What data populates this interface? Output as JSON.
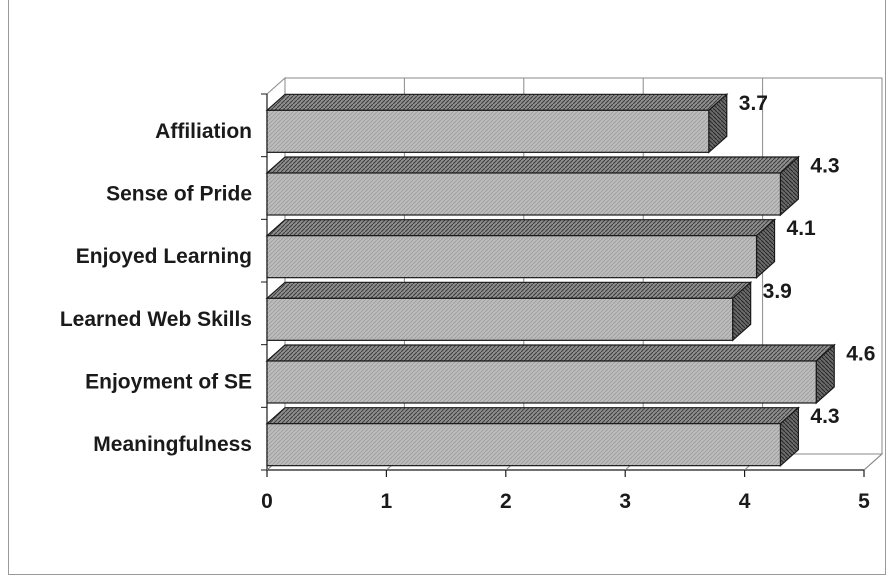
{
  "chart_data": {
    "type": "bar",
    "orientation": "horizontal",
    "style": "3d",
    "categories": [
      "Affiliation",
      "Sense of Pride",
      "Enjoyed Learning",
      "Learned Web Skills",
      "Enjoyment of SE",
      "Meaningfulness"
    ],
    "values": [
      3.7,
      4.3,
      4.1,
      3.9,
      4.6,
      4.3
    ],
    "data_labels": [
      "3.7",
      "4.3",
      "4.1",
      "3.9",
      "4.6",
      "4.3"
    ],
    "x_ticks": [
      "0",
      "1",
      "2",
      "3",
      "4",
      "5"
    ],
    "xlim": [
      0,
      5
    ],
    "title": "",
    "xlabel": "",
    "ylabel": "",
    "grid": "vertical",
    "legend": "none",
    "colors": {
      "bar_face": "#b8b8b8",
      "bar_top": "#8c8c8c",
      "bar_side": "#6e6e6e",
      "outline": "#1a1a1a",
      "grid": "#8a8a8a"
    }
  }
}
